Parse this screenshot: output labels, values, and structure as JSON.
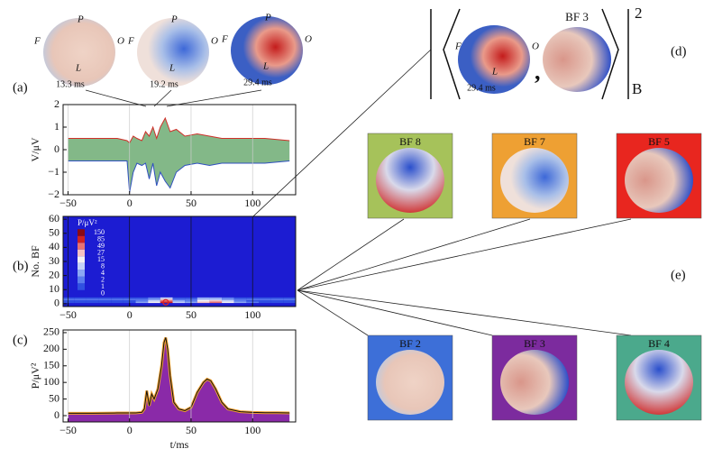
{
  "panel_labels": [
    "(a)",
    "(b)",
    "(c)",
    "(d)",
    "(e)"
  ],
  "heads": [
    {
      "time": "13.3 ms",
      "F": "F",
      "P": "P",
      "O": "O",
      "L": "L"
    },
    {
      "time": "19.2 ms",
      "F": "F",
      "P": "P",
      "O": "O",
      "L": "L"
    },
    {
      "time": "29.4 ms",
      "F": "F",
      "P": "P",
      "O": "O",
      "L": "L"
    }
  ],
  "bracket": {
    "head_time": "29.4 ms",
    "F": "F",
    "L": "L",
    "O": "O",
    "bf": "BF 3",
    "comma": ",",
    "subscript": "B",
    "exponent": "2"
  },
  "basis": [
    {
      "label": "BF 8",
      "color": "#a6c25a"
    },
    {
      "label": "BF 7",
      "color": "#eea033"
    },
    {
      "label": "BF 5",
      "color": "#e8261f"
    },
    {
      "label": "BF 2",
      "color": "#3d6fd8"
    },
    {
      "label": "BF 3",
      "color": "#7c2b9e"
    },
    {
      "label": "BF 4",
      "color": "#4ba98c"
    }
  ],
  "chart_data": [
    {
      "type": "line",
      "ylabel": "V/μV",
      "x": [
        -50,
        -40,
        -30,
        -20,
        -10,
        -2,
        0,
        3,
        6,
        10,
        13,
        16,
        19,
        22,
        25,
        29,
        33,
        38,
        45,
        55,
        65,
        75,
        90,
        110,
        130
      ],
      "series": [
        {
          "color": "#d0302a",
          "values": [
            0.5,
            0.5,
            0.5,
            0.5,
            0.5,
            0.4,
            0.3,
            0.6,
            0.5,
            0.4,
            0.8,
            0.6,
            1.0,
            0.5,
            1.0,
            1.4,
            0.8,
            0.9,
            0.6,
            0.7,
            0.6,
            0.5,
            0.5,
            0.5,
            0.4
          ]
        },
        {
          "color": "#3050c0",
          "values": [
            -0.5,
            -0.5,
            -0.5,
            -0.5,
            -0.5,
            -0.5,
            -1.9,
            -1.0,
            -0.6,
            -0.7,
            -0.6,
            -1.3,
            -0.6,
            -1.6,
            -1.0,
            -1.4,
            -1.7,
            -1.0,
            -0.7,
            -0.6,
            -0.7,
            -0.6,
            -0.6,
            -0.6,
            -0.5
          ]
        }
      ],
      "xlim": [
        -54,
        135
      ],
      "ylim": [
        -2,
        2
      ],
      "xticks": [
        {
          "value": -50,
          "label": "−50"
        },
        0,
        50,
        100
      ],
      "yticks": [
        {
          "value": -2,
          "label": "−2"
        },
        {
          "value": -1,
          "label": "−1"
        },
        0,
        1,
        2
      ],
      "grid": true
    },
    {
      "type": "heatmap",
      "ylabel": "No. BF",
      "x": [
        -50,
        -40,
        -30,
        -20,
        -10,
        0,
        10,
        20,
        30,
        40,
        50,
        60,
        70,
        80,
        90,
        100,
        110,
        120,
        130
      ],
      "rows": [
        1,
        2,
        3,
        4
      ],
      "z": [
        [
          1,
          1,
          1,
          1,
          1,
          1,
          4,
          15,
          85,
          8,
          4,
          27,
          49,
          15,
          4,
          2,
          1,
          1,
          1
        ],
        [
          1,
          1,
          1,
          1,
          1,
          1,
          2,
          8,
          49,
          4,
          2,
          15,
          27,
          8,
          2,
          1,
          1,
          1,
          1
        ],
        [
          2,
          2,
          2,
          2,
          2,
          2,
          2,
          4,
          27,
          2,
          2,
          8,
          8,
          4,
          2,
          2,
          2,
          2,
          2
        ],
        [
          1,
          1,
          1,
          1,
          1,
          1,
          1,
          2,
          8,
          1,
          1,
          4,
          4,
          2,
          1,
          1,
          1,
          1,
          1
        ]
      ],
      "marker": {
        "x": 29.4,
        "y": 1
      },
      "colorbar": {
        "title": "P/μV²",
        "ticks": [
          0,
          1,
          2,
          4,
          8,
          15,
          27,
          49,
          85,
          150
        ],
        "colors": [
          "#1c1cd2",
          "#3050e2",
          "#5a7cee",
          "#8ca8f3",
          "#c4d2f8",
          "#f4f2f2",
          "#f4c2c2",
          "#e87272",
          "#d02222",
          "#8a0a14"
        ]
      },
      "xlim": [
        -54,
        135
      ],
      "ylim": [
        -2,
        62
      ],
      "xticks": [
        {
          "value": -50,
          "label": "−50"
        },
        0,
        50,
        100
      ],
      "yticks": [
        0,
        10,
        20,
        30,
        40,
        50,
        60
      ],
      "grid": true
    },
    {
      "type": "area",
      "xlabel": "t/ms",
      "ylabel": "P/μV²",
      "color": "#8a2aa8",
      "x": [
        -50,
        -30,
        -10,
        0,
        5,
        10,
        12,
        14,
        16,
        18,
        20,
        23,
        26,
        28,
        29.4,
        31,
        33,
        36,
        40,
        45,
        50,
        55,
        60,
        63,
        66,
        70,
        75,
        80,
        90,
        100,
        110,
        120,
        130
      ],
      "values": [
        7,
        7,
        8,
        8,
        8,
        10,
        20,
        75,
        30,
        65,
        50,
        80,
        150,
        220,
        235,
        200,
        120,
        40,
        20,
        15,
        25,
        70,
        100,
        110,
        105,
        80,
        40,
        20,
        12,
        10,
        9,
        9,
        8
      ],
      "xlim": [
        -54,
        135
      ],
      "ylim": [
        -19,
        258
      ],
      "xticks": [
        {
          "value": -50,
          "label": "−50"
        },
        0,
        50,
        100
      ],
      "yticks": [
        0,
        50,
        100,
        150,
        200,
        250
      ],
      "grid": true
    }
  ]
}
